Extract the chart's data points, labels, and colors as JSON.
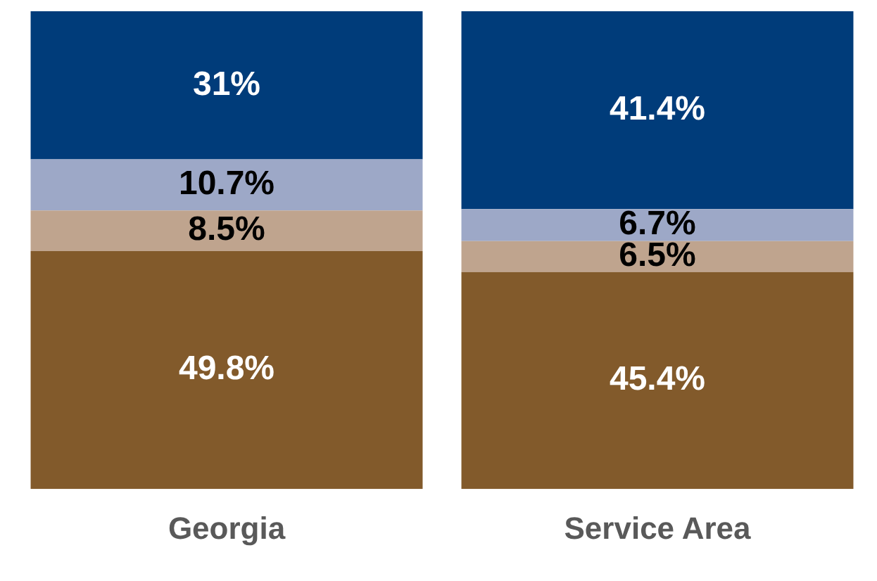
{
  "chart_data": {
    "type": "bar",
    "stacked": true,
    "categories": [
      "Georgia",
      "Service Area"
    ],
    "ylim": [
      0,
      100
    ],
    "tick_labels": "x",
    "grid": false,
    "legend": false,
    "series": [
      {
        "color": "#825a2b",
        "values": [
          49.8,
          45.4
        ],
        "value_labels": [
          "49.8%",
          "45.4%"
        ]
      },
      {
        "color": "#bfa48e",
        "values": [
          8.5,
          6.5
        ],
        "value_labels": [
          "8.5%",
          "6.5%"
        ]
      },
      {
        "color": "#9da8c7",
        "values": [
          10.7,
          6.7
        ],
        "value_labels": [
          "10.7%",
          "6.7%"
        ]
      },
      {
        "color": "#003c7a",
        "values": [
          31,
          41.4
        ],
        "value_labels": [
          "31%",
          "41.4%"
        ]
      }
    ]
  }
}
